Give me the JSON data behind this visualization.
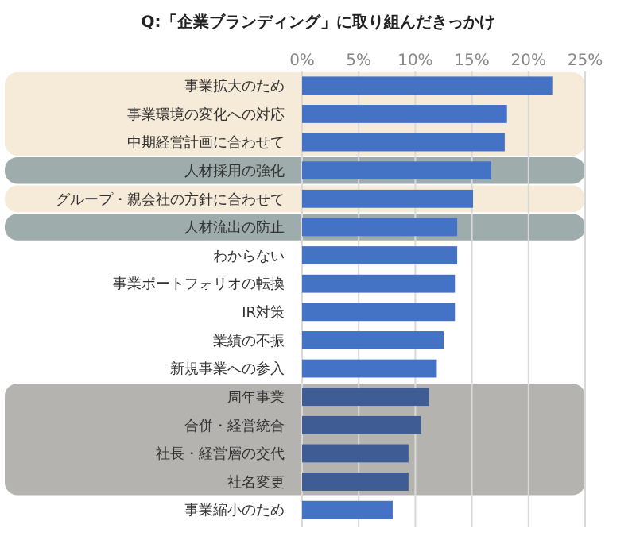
{
  "chart_data": {
    "type": "bar",
    "orientation": "horizontal",
    "title": "Q:「企業ブランディング」に取り組んだきっかけ",
    "categories": [
      "事業拡大のため",
      "事業環境の変化への対応",
      "中期経営計画に合わせて",
      "人材採用の強化",
      "グループ・親会社の方針に合わせて",
      "人材流出の防止",
      "わからない",
      "事業ポートフォリオの転換",
      "IR対策",
      "業績の不振",
      "新規事業への参入",
      "周年事業",
      "合併・経営統合",
      "社長・経営層の交代",
      "社名変更",
      "事業縮小のため"
    ],
    "values": [
      22.1,
      18.1,
      17.9,
      16.7,
      15.1,
      13.7,
      13.7,
      13.5,
      13.5,
      12.5,
      11.9,
      11.2,
      10.5,
      9.4,
      9.4,
      8.0
    ],
    "colors": [
      "#4472c4",
      "#4472c4",
      "#4472c4",
      "#4472c4",
      "#4472c4",
      "#4472c4",
      "#4472c4",
      "#4472c4",
      "#4472c4",
      "#4472c4",
      "#4472c4",
      "#3f5c95",
      "#3f5c95",
      "#3f5c95",
      "#3f5c95",
      "#4472c4"
    ],
    "xlim": [
      0,
      25
    ],
    "xticks": [
      {
        "value": 0,
        "label": "0%"
      },
      {
        "value": 5,
        "label": "5%"
      },
      {
        "value": 10,
        "label": "10%"
      },
      {
        "value": 15,
        "label": "15%"
      },
      {
        "value": 20,
        "label": "20%"
      },
      {
        "value": 25,
        "label": "25%"
      }
    ],
    "grid": "x",
    "bands": [
      {
        "axis": "y",
        "from": "事業拡大のため",
        "to": "中期経営計画に合わせて",
        "color": "#f6ead8"
      },
      {
        "axis": "y",
        "from": "人材採用の強化",
        "to": "人材採用の強化",
        "color": "#9eacab"
      },
      {
        "axis": "y",
        "from": "グループ・親会社の方針に合わせて",
        "to": "グループ・親会社の方針に合わせて",
        "color": "#f6ead8"
      },
      {
        "axis": "y",
        "from": "人材流出の防止",
        "to": "人材流出の防止",
        "color": "#9eacab"
      },
      {
        "axis": "y",
        "from": "周年事業",
        "to": "社名変更",
        "color": "#b5b3b0"
      }
    ]
  }
}
